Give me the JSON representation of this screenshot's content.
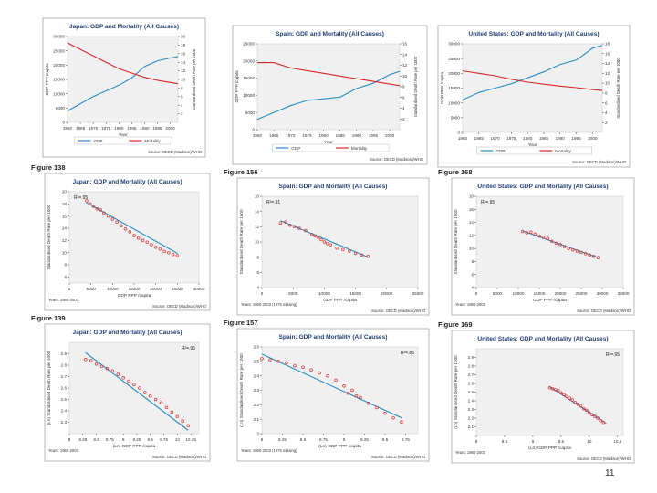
{
  "slide_number": "11",
  "colors": {
    "gdp": "#2a8dc9",
    "mortality": "#d62828",
    "fit": "#2a8dc9",
    "scatter": "#e03030",
    "title": "#1f3f73",
    "axis": "#444444",
    "grid": "#f0f0f0"
  },
  "chart_data": [
    {
      "id": "japan-ts",
      "type": "line",
      "figure_label": "",
      "title": "Japan: GDP and Mortality (All Causes)",
      "xlabel": "Year",
      "ylabel": "GDP PPP /capita",
      "y2label": "Standardised Death Rate per 1000",
      "x": [
        1960,
        1965,
        1970,
        1975,
        1980,
        1985,
        1990,
        1995,
        2000,
        2003
      ],
      "xticks": [
        "1960",
        "1965",
        "1970",
        "1975",
        "1980",
        "1985",
        "1990",
        "1995",
        "2000"
      ],
      "ylim": [
        0,
        30000
      ],
      "yticks": [
        "0",
        "5000",
        "10000",
        "15000",
        "20000",
        "25000",
        "30000"
      ],
      "y2lim": [
        0,
        20
      ],
      "y2ticks": [
        "2",
        "4",
        "6",
        "8",
        "10",
        "12",
        "14",
        "16",
        "18",
        "20"
      ],
      "series": [
        {
          "name": "GDP",
          "axis": "left",
          "values": [
            4000,
            6500,
            9000,
            11000,
            13000,
            15500,
            19500,
            21500,
            22500,
            23000
          ]
        },
        {
          "name": "Mortality",
          "axis": "right",
          "values": [
            18.5,
            17,
            15.5,
            14,
            12.5,
            11.5,
            10.5,
            9.8,
            9.3,
            9.0
          ]
        }
      ],
      "legend": [
        "GDP",
        "Mortality"
      ],
      "source": "Source: OECD (Madison)/WHO",
      "years_note": ""
    },
    {
      "id": "spain-ts",
      "type": "line",
      "figure_label": "",
      "title": "Spain: GDP and Mortality (All Causes)",
      "xlabel": "Year",
      "ylabel": "GDP PPP /capita",
      "y2label": "Standardised Death Rate per 1000",
      "x": [
        1960,
        1965,
        1970,
        1975,
        1980,
        1985,
        1990,
        1995,
        2000,
        2003
      ],
      "xticks": [
        "1960",
        "1965",
        "1970",
        "1975",
        "1980",
        "1985",
        "1990",
        "1995",
        "2000"
      ],
      "ylim": [
        0,
        25000
      ],
      "yticks": [
        "0",
        "5000",
        "10000",
        "15000",
        "20000",
        "25000"
      ],
      "y2lim": [
        0,
        16
      ],
      "y2ticks": [
        "2",
        "4",
        "6",
        "8",
        "10",
        "12",
        "14",
        "16"
      ],
      "series": [
        {
          "name": "GDP",
          "axis": "left",
          "values": [
            3000,
            5000,
            7000,
            8500,
            9000,
            9500,
            12000,
            13500,
            16000,
            17000
          ]
        },
        {
          "name": "Mortality",
          "axis": "right",
          "values": [
            12.5,
            12.5,
            11.5,
            11,
            10.5,
            10,
            9.5,
            9,
            8.5,
            8.2
          ]
        }
      ],
      "legend": [
        "GDP",
        "Mortality"
      ],
      "source": "Source: OECD (Madison)/WHO",
      "years_note": ""
    },
    {
      "id": "us-ts",
      "type": "line",
      "figure_label": "",
      "title": "United States: GDP and Mortality (All Causes)",
      "xlabel": "Year",
      "ylabel": "GDP PPP /capita",
      "y2label": "Standardised Death Rate per 1000",
      "x": [
        1960,
        1965,
        1970,
        1975,
        1980,
        1985,
        1990,
        1995,
        2000,
        2003
      ],
      "xticks": [
        "1960",
        "1965",
        "1970",
        "1975",
        "1980",
        "1985",
        "1990",
        "1995",
        "2000"
      ],
      "ylim": [
        0,
        30000
      ],
      "yticks": [
        "0",
        "5000",
        "10000",
        "15000",
        "20000",
        "25000",
        "30000"
      ],
      "y2lim": [
        0,
        18
      ],
      "y2ticks": [
        "2",
        "4",
        "6",
        "8",
        "10",
        "12",
        "14",
        "16",
        "18"
      ],
      "series": [
        {
          "name": "GDP",
          "axis": "left",
          "values": [
            11000,
            13500,
            15000,
            16500,
            18500,
            20500,
            23000,
            24500,
            28500,
            29500
          ]
        },
        {
          "name": "Mortality",
          "axis": "right",
          "values": [
            12.5,
            12,
            11.5,
            10.8,
            10.2,
            9.8,
            9.4,
            9.1,
            8.7,
            8.5
          ]
        }
      ],
      "legend": [
        "GDP",
        "Mortality"
      ],
      "source": "Source: OECD (Madison)/WHO",
      "years_note": ""
    },
    {
      "id": "japan-scatter",
      "type": "scatter",
      "figure_label": "Figure 138",
      "title": "Japan: GDP and Mortality (All Causes)",
      "xlabel": "GDP PPP /capita",
      "ylabel": "Standardised Death Rate per 1000",
      "xlim": [
        0,
        30000
      ],
      "xticks": [
        "0",
        "5000",
        "10000",
        "15000",
        "20000",
        "25000",
        "30000"
      ],
      "ylim": [
        5,
        20
      ],
      "yticks": [
        "6",
        "8",
        "10",
        "12",
        "14",
        "16",
        "18",
        "20"
      ],
      "r2": "R²=.95",
      "points": [
        [
          4000,
          18.5
        ],
        [
          4800,
          18
        ],
        [
          5600,
          17.6
        ],
        [
          6400,
          17.2
        ],
        [
          7200,
          17
        ],
        [
          8000,
          16.5
        ],
        [
          9000,
          16
        ],
        [
          10000,
          15.5
        ],
        [
          11000,
          15
        ],
        [
          12000,
          14.4
        ],
        [
          13000,
          13.9
        ],
        [
          14000,
          13.4
        ],
        [
          15000,
          12.8
        ],
        [
          16000,
          12.4
        ],
        [
          17000,
          12
        ],
        [
          18000,
          11.7
        ],
        [
          19000,
          11.3
        ],
        [
          20000,
          10.9
        ],
        [
          21000,
          10.6
        ],
        [
          22000,
          10.2
        ],
        [
          23000,
          10
        ],
        [
          24000,
          9.7
        ],
        [
          25000,
          9.5
        ]
      ],
      "fit": [
        [
          4000,
          18.2
        ],
        [
          25000,
          9.9
        ]
      ],
      "source": "Source: OECD (Madison)/WHO",
      "years_note": "Years: 1960-2003"
    },
    {
      "id": "spain-scatter",
      "type": "scatter",
      "figure_label": "Figure 156",
      "title": "Spain: GDP and Mortality (All Causes)",
      "xlabel": "GDP PPP /capita",
      "ylabel": "Standardised Death Rate per 1000",
      "xlim": [
        0,
        25000
      ],
      "xticks": [
        "0",
        "5000",
        "10000",
        "15000",
        "20000",
        "25000"
      ],
      "ylim": [
        4,
        16
      ],
      "yticks": [
        "4",
        "6",
        "8",
        "10",
        "12",
        "14",
        "16"
      ],
      "r2": "R²=.91",
      "points": [
        [
          3000,
          12.5
        ],
        [
          3800,
          12.6
        ],
        [
          4500,
          12.2
        ],
        [
          5200,
          12
        ],
        [
          6000,
          11.8
        ],
        [
          7000,
          11.5
        ],
        [
          8000,
          11
        ],
        [
          8500,
          10.8
        ],
        [
          9000,
          10.6
        ],
        [
          9500,
          10.3
        ],
        [
          10000,
          10
        ],
        [
          10500,
          9.8
        ],
        [
          11000,
          9.6
        ],
        [
          12000,
          9.2
        ],
        [
          13000,
          9
        ],
        [
          14000,
          8.8
        ],
        [
          15000,
          8.5
        ],
        [
          16000,
          8.3
        ],
        [
          17000,
          8.1
        ]
      ],
      "fit": [
        [
          3000,
          12.8
        ],
        [
          17000,
          8.0
        ]
      ],
      "source": "Source: OECD (Madison)/WHO",
      "years_note": "Years: 1960-2003 (1976 missing)"
    },
    {
      "id": "us-scatter",
      "type": "scatter",
      "figure_label": "Figure 168",
      "title": "United States: GDP and Mortality (All Causes)",
      "xlabel": "GDP PPP /capita",
      "ylabel": "Standardised Death Rate per 1000",
      "xlim": [
        0,
        35000
      ],
      "xticks": [
        "0",
        "5000",
        "10000",
        "15000",
        "20000",
        "25000",
        "30000",
        "35000"
      ],
      "ylim": [
        4,
        18
      ],
      "yticks": [
        "4",
        "6",
        "8",
        "10",
        "12",
        "14",
        "16",
        "18"
      ],
      "r2": "R²=.95",
      "points": [
        [
          11000,
          12.6
        ],
        [
          12000,
          12.4
        ],
        [
          13000,
          12.5
        ],
        [
          14000,
          12.2
        ],
        [
          15000,
          11.9
        ],
        [
          16000,
          11.7
        ],
        [
          17000,
          11.5
        ],
        [
          18000,
          11.1
        ],
        [
          19000,
          10.8
        ],
        [
          20000,
          10.6
        ],
        [
          21000,
          10.3
        ],
        [
          22000,
          10
        ],
        [
          23000,
          9.8
        ],
        [
          24000,
          9.6
        ],
        [
          25000,
          9.4
        ],
        [
          26000,
          9.2
        ],
        [
          27000,
          9
        ],
        [
          28000,
          8.8
        ],
        [
          29000,
          8.6
        ]
      ],
      "fit": [
        [
          11000,
          12.7
        ],
        [
          29000,
          8.6
        ]
      ],
      "source": "Source: OECD (Madison)/WHO",
      "years_note": "Years: 1960-2003"
    },
    {
      "id": "japan-log",
      "type": "scatter",
      "figure_label": "Figure 139",
      "title": "Japan: GDP and Mortality (All Causes)",
      "xlabel": "(Ln) GDP PPP /capita",
      "ylabel": "(Ln) Standardised Death Rate per 1000",
      "xlim": [
        8,
        10.4
      ],
      "xticks": [
        "8",
        "8.25",
        "8.5",
        "8.75",
        "9",
        "9.25",
        "9.5",
        "9.75",
        "10",
        "10.25"
      ],
      "ylim": [
        2.2,
        3.0
      ],
      "yticks": [
        "2.3",
        "2.4",
        "2.5",
        "2.6",
        "2.7",
        "2.8",
        "2.9"
      ],
      "r2": "R²=.95",
      "points": [
        [
          8.3,
          2.85
        ],
        [
          8.4,
          2.84
        ],
        [
          8.5,
          2.81
        ],
        [
          8.6,
          2.79
        ],
        [
          8.7,
          2.77
        ],
        [
          8.8,
          2.75
        ],
        [
          8.9,
          2.72
        ],
        [
          9.0,
          2.69
        ],
        [
          9.1,
          2.66
        ],
        [
          9.2,
          2.63
        ],
        [
          9.3,
          2.6
        ],
        [
          9.4,
          2.56
        ],
        [
          9.5,
          2.53
        ],
        [
          9.6,
          2.5
        ],
        [
          9.7,
          2.47
        ],
        [
          9.8,
          2.43
        ],
        [
          9.9,
          2.39
        ],
        [
          10.0,
          2.35
        ],
        [
          10.1,
          2.31
        ],
        [
          10.2,
          2.27
        ]
      ],
      "fit": [
        [
          8.3,
          2.91
        ],
        [
          10.2,
          2.23
        ]
      ],
      "source": "Source: OECD (Madison)/WHO",
      "years_note": "Years: 1960-2003"
    },
    {
      "id": "spain-log",
      "type": "scatter",
      "figure_label": "Figure 157",
      "title": "Spain: GDP and Mortality (All Causes)",
      "xlabel": "(Ln) GDP PPP /capita",
      "ylabel": "(Ln) Standardised Death Rate per 1000",
      "xlim": [
        8,
        9.9
      ],
      "xticks": [
        "8",
        "8.25",
        "8.5",
        "8.75",
        "9",
        "9.25",
        "9.5",
        "9.75"
      ],
      "ylim": [
        2.0,
        2.6
      ],
      "yticks": [
        "2",
        "2.1",
        "2.2",
        "2.3",
        "2.4",
        "2.5",
        "2.6"
      ],
      "r2": "R²=.86",
      "points": [
        [
          8.0,
          2.52
        ],
        [
          8.1,
          2.51
        ],
        [
          8.2,
          2.5
        ],
        [
          8.3,
          2.49
        ],
        [
          8.4,
          2.47
        ],
        [
          8.5,
          2.46
        ],
        [
          8.6,
          2.44
        ],
        [
          8.7,
          2.42
        ],
        [
          8.8,
          2.4
        ],
        [
          8.9,
          2.37
        ],
        [
          9.0,
          2.33
        ],
        [
          9.05,
          2.28
        ],
        [
          9.1,
          2.3
        ],
        [
          9.15,
          2.26
        ],
        [
          9.2,
          2.25
        ],
        [
          9.3,
          2.21
        ],
        [
          9.4,
          2.18
        ],
        [
          9.5,
          2.14
        ],
        [
          9.6,
          2.11
        ],
        [
          9.7,
          2.08
        ]
      ],
      "fit": [
        [
          8.0,
          2.55
        ],
        [
          9.7,
          2.11
        ]
      ],
      "source": "Source: OECD (Madison)/WHO",
      "years_note": "Years: 1960-2003 (1976 missing)"
    },
    {
      "id": "us-log",
      "type": "scatter",
      "figure_label": "Figure 169",
      "title": "United States: GDP and Mortality (All Causes)",
      "xlabel": "(Ln) GDP PPP /capita",
      "ylabel": "(Ln) Standardised Death Rate per 1000",
      "xlim": [
        8,
        10.6
      ],
      "xticks": [
        "8",
        "8.5",
        "9",
        "9.5",
        "10",
        "10.5"
      ],
      "ylim": [
        2.0,
        3.0
      ],
      "yticks": [
        "2.1",
        "2.2",
        "2.3",
        "2.4",
        "2.5",
        "2.6",
        "2.7",
        "2.8",
        "2.9"
      ],
      "r2": "R²=.95",
      "points": [
        [
          9.3,
          2.55
        ],
        [
          9.35,
          2.54
        ],
        [
          9.4,
          2.53
        ],
        [
          9.45,
          2.52
        ],
        [
          9.5,
          2.49
        ],
        [
          9.55,
          2.47
        ],
        [
          9.6,
          2.45
        ],
        [
          9.65,
          2.43
        ],
        [
          9.7,
          2.41
        ],
        [
          9.75,
          2.38
        ],
        [
          9.8,
          2.36
        ],
        [
          9.85,
          2.34
        ],
        [
          9.9,
          2.31
        ],
        [
          9.95,
          2.29
        ],
        [
          10.0,
          2.26
        ],
        [
          10.05,
          2.24
        ],
        [
          10.1,
          2.22
        ],
        [
          10.15,
          2.2
        ],
        [
          10.2,
          2.17
        ],
        [
          10.25,
          2.15
        ]
      ],
      "fit": [
        [
          9.3,
          2.56
        ],
        [
          10.3,
          2.14
        ]
      ],
      "source": "Source: OECD (Madison)/WHO",
      "years_note": "Years: 1960-2003"
    }
  ]
}
